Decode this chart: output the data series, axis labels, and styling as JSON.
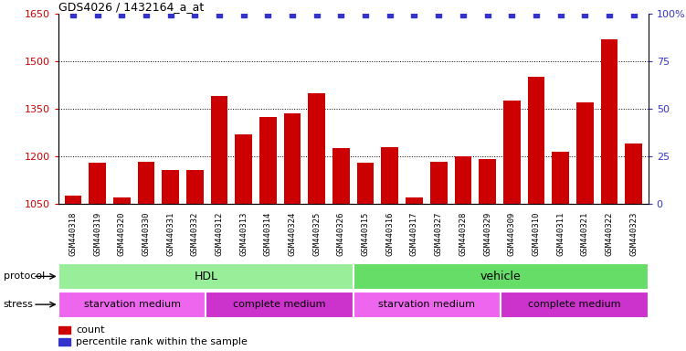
{
  "title": "GDS4026 / 1432164_a_at",
  "samples": [
    "GSM440318",
    "GSM440319",
    "GSM440320",
    "GSM440330",
    "GSM440331",
    "GSM440332",
    "GSM440312",
    "GSM440313",
    "GSM440314",
    "GSM440324",
    "GSM440325",
    "GSM440326",
    "GSM440315",
    "GSM440316",
    "GSM440317",
    "GSM440327",
    "GSM440328",
    "GSM440329",
    "GSM440309",
    "GSM440310",
    "GSM440311",
    "GSM440321",
    "GSM440322",
    "GSM440323"
  ],
  "counts": [
    1075,
    1180,
    1070,
    1183,
    1155,
    1155,
    1390,
    1270,
    1325,
    1335,
    1400,
    1225,
    1178,
    1230,
    1068,
    1183,
    1200,
    1192,
    1375,
    1450,
    1215,
    1370,
    1570,
    1240
  ],
  "ylim_left": [
    1050,
    1650
  ],
  "ylim_right": [
    0,
    100
  ],
  "yticks_left": [
    1050,
    1200,
    1350,
    1500,
    1650
  ],
  "yticks_right": [
    0,
    25,
    50,
    75,
    100
  ],
  "bar_color": "#cc0000",
  "dot_color": "#3333cc",
  "grid_color": "#000000",
  "plot_bg": "#ffffff",
  "xtick_bg": "#d8d8d8",
  "protocol_HDL_color": "#99ee99",
  "protocol_vehicle_color": "#66dd66",
  "stress_starvation_color": "#ee66ee",
  "stress_complete_color": "#cc33cc",
  "protocol_label": "protocol",
  "stress_label": "stress",
  "hdl_label": "HDL",
  "vehicle_label": "vehicle",
  "starvation_label": "starvation medium",
  "complete_label": "complete medium",
  "legend_count": "count",
  "legend_percentile": "percentile rank within the sample",
  "n_hdl": 12,
  "n_vehicle": 12,
  "n_starvation1": 6,
  "n_complete1": 6,
  "n_starvation2": 6,
  "n_complete2": 6
}
